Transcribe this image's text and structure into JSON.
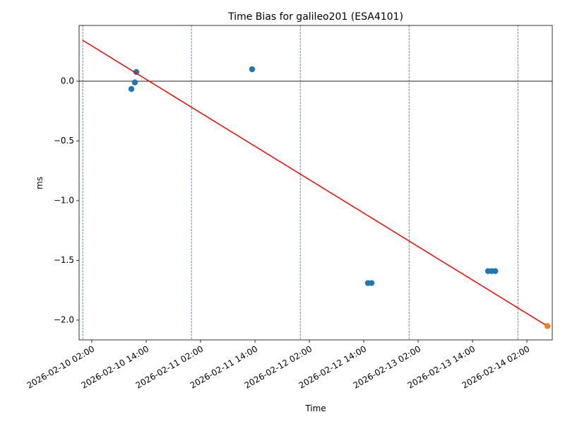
{
  "chart_data": {
    "type": "scatter",
    "title": "Time Bias for galileo201 (ESA4101)",
    "xlabel": "Time",
    "ylabel": "ms",
    "xlim": [
      "2026-02-09T23:12",
      "2026-02-14T07:36"
    ],
    "ylim": [
      -2.166,
      0.467
    ],
    "xticks": [
      {
        "value": "2026-02-10T02:00",
        "label": "2026-02-10 02:00"
      },
      {
        "value": "2026-02-10T14:00",
        "label": "2026-02-10 14:00"
      },
      {
        "value": "2026-02-11T02:00",
        "label": "2026-02-11 02:00"
      },
      {
        "value": "2026-02-11T14:00",
        "label": "2026-02-11 14:00"
      },
      {
        "value": "2026-02-12T02:00",
        "label": "2026-02-12 02:00"
      },
      {
        "value": "2026-02-12T14:00",
        "label": "2026-02-12 14:00"
      },
      {
        "value": "2026-02-13T02:00",
        "label": "2026-02-13 02:00"
      },
      {
        "value": "2026-02-13T14:00",
        "label": "2026-02-13 14:00"
      },
      {
        "value": "2026-02-14T02:00",
        "label": "2026-02-14 02:00"
      }
    ],
    "yticks": [
      {
        "value": 0,
        "label": "0.0"
      },
      {
        "value": -0.5,
        "label": "−0.5"
      },
      {
        "value": -1.0,
        "label": "−1.0"
      },
      {
        "value": -1.5,
        "label": "−1.5"
      },
      {
        "value": -2.0,
        "label": "−2.0"
      }
    ],
    "hline": 0,
    "hline_color": "#000000",
    "vlines": [
      "2026-02-10T00:00",
      "2026-02-11T00:00",
      "2026-02-12T00:00",
      "2026-02-13T00:00",
      "2026-02-14T00:00"
    ],
    "vline_color": "#1f77b4",
    "series": [
      {
        "type": "scatter",
        "color": "#1f77b4",
        "x": [
          "2026-02-10T10:44",
          "2026-02-10T11:30",
          "2026-02-10T11:49",
          "2026-02-11T13:22",
          "2026-02-12T14:56",
          "2026-02-12T15:43",
          "2026-02-13T17:26",
          "2026-02-13T18:13",
          "2026-02-13T19:00"
        ],
        "values": [
          -0.065,
          -0.01,
          0.077,
          0.1,
          -1.69,
          -1.69,
          -1.59,
          -1.59,
          -1.59
        ]
      },
      {
        "type": "line",
        "color": "#ff0000",
        "x": [
          "2026-02-09T23:58",
          "2026-02-14T06:31"
        ],
        "values": [
          0.343,
          -2.05
        ]
      },
      {
        "type": "scatter",
        "color": "#ff7f0e",
        "x": [
          "2026-02-14T06:31"
        ],
        "values": [
          -2.05
        ]
      }
    ]
  }
}
